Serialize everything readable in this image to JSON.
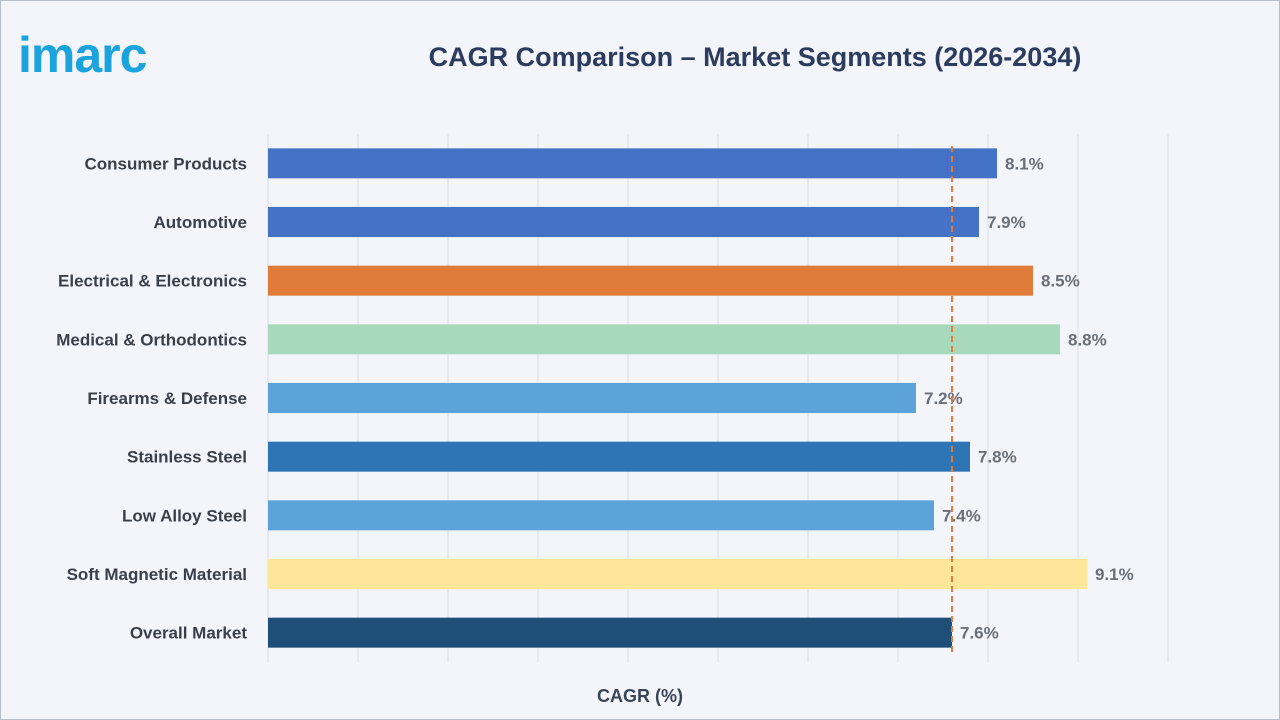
{
  "brand": {
    "logo_text": "imarc",
    "logo_color": "#1aa3dc"
  },
  "chart_data": {
    "type": "bar",
    "orientation": "horizontal",
    "title": "CAGR Comparison – Market Segments (2026-2034)",
    "xlabel": "CAGR (%)",
    "ylabel": "",
    "xlim": [
      0,
      10
    ],
    "grid": true,
    "reference_line": {
      "value": 7.6,
      "style": "dashed",
      "color": "#e07b39"
    },
    "categories": [
      "Consumer Products",
      "Automotive",
      "Electrical & Electronics",
      "Medical & Orthodontics",
      "Firearms & Defense",
      "Stainless Steel",
      "Low Alloy Steel",
      "Soft Magnetic Material",
      "Overall Market"
    ],
    "values": [
      8.1,
      7.9,
      8.5,
      8.8,
      7.2,
      7.8,
      7.4,
      9.1,
      7.6
    ],
    "data_labels": [
      "8.1%",
      "7.9%",
      "8.5%",
      "8.8%",
      "7.2%",
      "7.8%",
      "7.4%",
      "9.1%",
      "7.6%"
    ],
    "colors": [
      "#4472c4",
      "#4472c4",
      "#e07b39",
      "#a9d9bd",
      "#5ba3d8",
      "#2e75b6",
      "#5ba3d8",
      "#ffe699",
      "#1f4e79"
    ]
  }
}
